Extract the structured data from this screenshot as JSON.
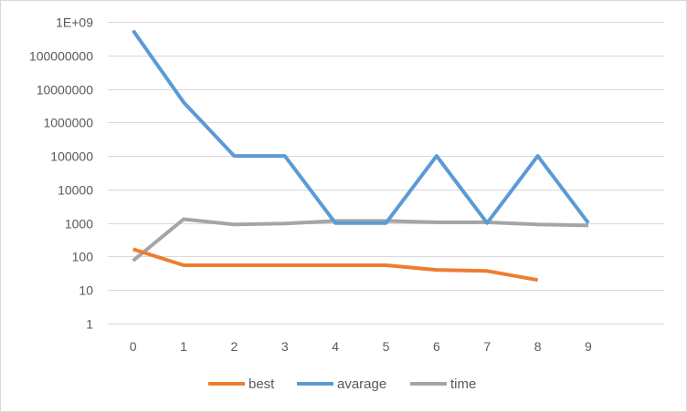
{
  "chart_data": {
    "type": "line",
    "y_scale": "log",
    "ylim": [
      1,
      1000000000
    ],
    "y_ticks": [
      1,
      10,
      100,
      1000,
      10000,
      100000,
      1000000,
      10000000,
      100000000,
      1000000000
    ],
    "y_tick_labels": [
      "1",
      "10",
      "100",
      "1000",
      "10000",
      "100000",
      "1000000",
      "10000000",
      "100000000",
      "1E+09"
    ],
    "x": [
      0,
      1,
      2,
      3,
      4,
      5,
      6,
      7,
      8,
      9
    ],
    "x_tick_labels": [
      "0",
      "1",
      "2",
      "3",
      "4",
      "5",
      "6",
      "7",
      "8",
      "9"
    ],
    "grid": true,
    "legend_position": "bottom",
    "series": [
      {
        "name": "best",
        "color": "#ed7d31",
        "values": [
          165,
          55,
          55,
          55,
          55,
          55,
          40,
          37,
          20,
          null
        ]
      },
      {
        "name": "avarage",
        "color": "#5b9bd5",
        "values": [
          550000000,
          4000000,
          100000,
          100000,
          1000,
          1000,
          100000,
          1000,
          100000,
          1000
        ]
      },
      {
        "name": "time",
        "color": "#a5a5a5",
        "values": [
          75,
          1300,
          900,
          970,
          1150,
          1150,
          1050,
          1050,
          900,
          850
        ]
      }
    ]
  }
}
